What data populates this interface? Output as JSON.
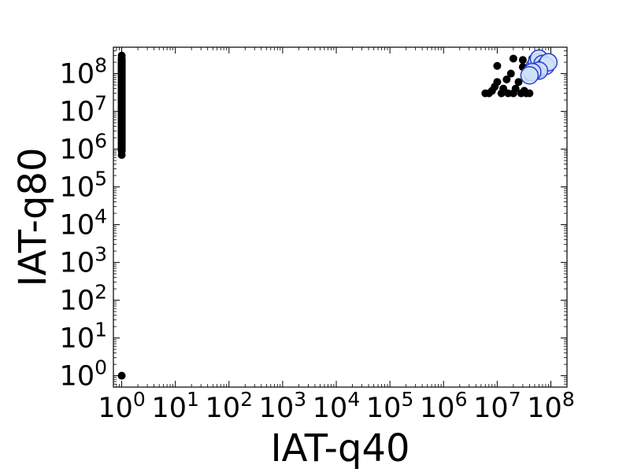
{
  "chart_data": {
    "type": "scatter",
    "title": "",
    "xlabel": "IAT-q40",
    "ylabel": "IAT-q80",
    "xscale": "log",
    "yscale": "log",
    "xlim": [
      0.7,
      200000000
    ],
    "ylim": [
      0.5,
      500000000
    ],
    "grid": false,
    "legend": "none",
    "x_ticks": [
      {
        "base": "10",
        "exp": "0"
      },
      {
        "base": "10",
        "exp": "1"
      },
      {
        "base": "10",
        "exp": "2"
      },
      {
        "base": "10",
        "exp": "3"
      },
      {
        "base": "10",
        "exp": "4"
      },
      {
        "base": "10",
        "exp": "5"
      },
      {
        "base": "10",
        "exp": "6"
      },
      {
        "base": "10",
        "exp": "7"
      },
      {
        "base": "10",
        "exp": "8"
      }
    ],
    "y_ticks": [
      {
        "base": "10",
        "exp": "0"
      },
      {
        "base": "10",
        "exp": "1"
      },
      {
        "base": "10",
        "exp": "2"
      },
      {
        "base": "10",
        "exp": "3"
      },
      {
        "base": "10",
        "exp": "4"
      },
      {
        "base": "10",
        "exp": "5"
      },
      {
        "base": "10",
        "exp": "6"
      },
      {
        "base": "10",
        "exp": "7"
      },
      {
        "base": "10",
        "exp": "8"
      }
    ],
    "series": [
      {
        "color": "#000000",
        "marker": "small-filled-circle",
        "points": [
          [
            1,
            1
          ],
          [
            1,
            700000
          ],
          [
            1,
            1000000
          ],
          [
            1,
            2000000
          ],
          [
            1,
            3000000
          ],
          [
            1,
            5000000
          ],
          [
            1,
            8000000
          ],
          [
            1,
            12000000
          ],
          [
            1,
            20000000
          ],
          [
            1,
            30000000
          ],
          [
            1,
            50000000
          ],
          [
            1,
            80000000
          ],
          [
            1,
            120000000
          ],
          [
            1,
            180000000
          ],
          [
            1,
            250000000
          ],
          [
            1,
            300000000
          ],
          [
            6000000,
            30000000
          ],
          [
            7000000,
            30000000
          ],
          [
            8000000,
            35000000
          ],
          [
            9000000,
            45000000
          ],
          [
            10000000,
            60000000
          ],
          [
            10000000,
            160000000
          ],
          [
            12000000,
            30000000
          ],
          [
            13000000,
            40000000
          ],
          [
            15000000,
            70000000
          ],
          [
            16000000,
            30000000
          ],
          [
            18000000,
            100000000
          ],
          [
            20000000,
            250000000
          ],
          [
            20000000,
            30000000
          ],
          [
            22000000,
            40000000
          ],
          [
            25000000,
            60000000
          ],
          [
            28000000,
            30000000
          ],
          [
            30000000,
            150000000
          ],
          [
            30000000,
            230000000
          ],
          [
            32000000,
            35000000
          ],
          [
            35000000,
            30000000
          ],
          [
            38000000,
            80000000
          ],
          [
            40000000,
            30000000
          ],
          [
            45000000,
            250000000
          ],
          [
            50000000,
            120000000
          ],
          [
            60000000,
            90000000
          ],
          [
            70000000,
            100000000
          ]
        ]
      },
      {
        "color": "#cfe2f7",
        "edge_color": "#2a3cd0",
        "marker": "large-circle",
        "points": [
          [
            50000000,
            150000000
          ],
          [
            55000000,
            200000000
          ],
          [
            60000000,
            250000000
          ],
          [
            70000000,
            180000000
          ],
          [
            80000000,
            160000000
          ],
          [
            90000000,
            200000000
          ],
          [
            60000000,
            120000000
          ],
          [
            45000000,
            110000000
          ],
          [
            40000000,
            90000000
          ]
        ]
      }
    ]
  }
}
